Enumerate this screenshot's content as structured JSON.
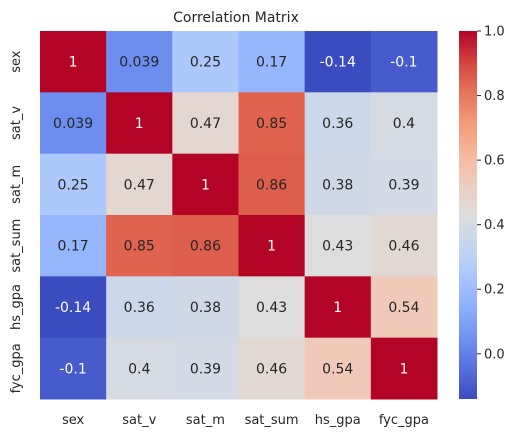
{
  "chart_data": {
    "type": "heatmap",
    "title": "Correlation Matrix",
    "x_labels": [
      "sex",
      "sat_v",
      "sat_m",
      "sat_sum",
      "hs_gpa",
      "fyc_gpa"
    ],
    "y_labels": [
      "sex",
      "sat_v",
      "sat_m",
      "sat_sum",
      "hs_gpa",
      "fyc_gpa"
    ],
    "values": [
      [
        1,
        0.039,
        0.25,
        0.17,
        -0.14,
        -0.1
      ],
      [
        0.039,
        1,
        0.47,
        0.85,
        0.36,
        0.4
      ],
      [
        0.25,
        0.47,
        1,
        0.86,
        0.38,
        0.39
      ],
      [
        0.17,
        0.85,
        0.86,
        1,
        0.43,
        0.46
      ],
      [
        -0.14,
        0.36,
        0.38,
        0.43,
        1,
        0.54
      ],
      [
        -0.1,
        0.4,
        0.39,
        0.46,
        0.54,
        1
      ]
    ],
    "cell_labels": [
      [
        "1",
        "0.039",
        "0.25",
        "0.17",
        "-0.14",
        "-0.1"
      ],
      [
        "0.039",
        "1",
        "0.47",
        "0.85",
        "0.36",
        "0.4"
      ],
      [
        "0.25",
        "0.47",
        "1",
        "0.86",
        "0.38",
        "0.39"
      ],
      [
        "0.17",
        "0.85",
        "0.86",
        "1",
        "0.43",
        "0.46"
      ],
      [
        "-0.14",
        "0.36",
        "0.38",
        "0.43",
        "1",
        "0.54"
      ],
      [
        "-0.1",
        "0.4",
        "0.39",
        "0.46",
        "0.54",
        "1"
      ]
    ],
    "colorscale": "coolwarm",
    "vmin": -0.14,
    "vmax": 1.0,
    "colorbar_ticks": [
      0.0,
      0.2,
      0.4,
      0.6,
      0.8,
      1.0
    ],
    "colorbar_tick_labels": [
      "0.0",
      "0.2",
      "0.4",
      "0.6",
      "0.8",
      "1.0"
    ],
    "grid": false,
    "legend": "colorbar-right"
  }
}
